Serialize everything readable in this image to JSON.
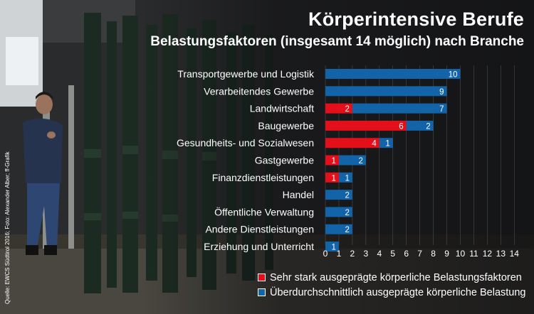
{
  "header": {
    "title": "Körperintensive Berufe",
    "subtitle": "Belastungsfaktoren (insgesamt 14 möglich) nach Branche"
  },
  "source": "Quelle: EWCS Südtirol 2016; Foto: Alexander Alber; ff-Grafik",
  "colors": {
    "red": "#e3101b",
    "blue": "#1263a8",
    "text": "#ffffff"
  },
  "chart_data": {
    "type": "bar",
    "orientation": "horizontal",
    "stacked": true,
    "title": "Körperintensive Berufe",
    "subtitle": "Belastungsfaktoren (insgesamt 14 möglich) nach Branche",
    "categories": [
      "Transportgewerbe und Logistik",
      "Verarbeitendes Gewerbe",
      "Landwirtschaft",
      "Baugewerbe",
      "Gesundheits- und Sozialwesen",
      "Gastgewerbe",
      "Finanzdienstleistungen",
      "Handel",
      "Öffentliche Verwaltung",
      "Andere Dienstleistungen",
      "Erziehung und Unterricht"
    ],
    "series": [
      {
        "name": "Sehr stark ausgeprägte körperliche Belastungsfaktoren",
        "color": "#e3101b",
        "values": [
          0,
          0,
          2,
          6,
          4,
          1,
          1,
          0,
          0,
          0,
          0
        ]
      },
      {
        "name": "Überdurchschnittlich ausgeprägte körperliche Belastung",
        "color": "#1263a8",
        "values": [
          10,
          9,
          7,
          2,
          1,
          2,
          1,
          2,
          2,
          2,
          1
        ]
      }
    ],
    "xlim": [
      0,
      14
    ],
    "xticks": [
      "0",
      "1",
      "2",
      "3",
      "4",
      "5",
      "6",
      "7",
      "8",
      "9",
      "10",
      "11",
      "12",
      "13",
      "14"
    ],
    "legend_position": "bottom"
  }
}
